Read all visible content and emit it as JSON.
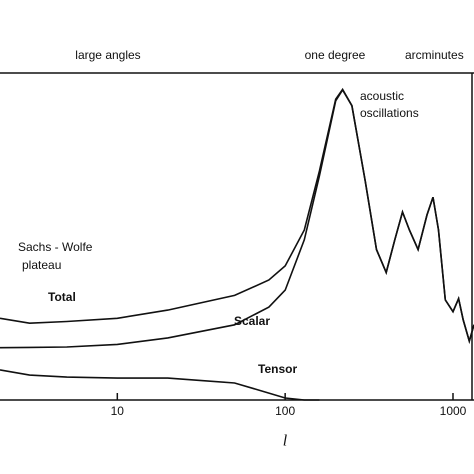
{
  "chart_data": {
    "type": "line",
    "x_label": "l",
    "top_labels": [
      "large angles",
      "one degree",
      "arcminutes"
    ],
    "annotations": {
      "acoustic": [
        "acoustic",
        "oscillations"
      ],
      "sachs_wolfe": [
        "Sachs - Wolfe",
        "plateau"
      ]
    },
    "log_x": true,
    "xlim": [
      2,
      1334
    ],
    "xticks": [
      10,
      100,
      1000
    ],
    "ylim": [
      0,
      100
    ],
    "x": [
      2,
      3,
      5,
      10,
      20,
      50,
      80,
      100,
      130,
      160,
      200,
      220,
      250,
      300,
      350,
      400,
      450,
      500,
      550,
      620,
      700,
      760,
      820,
      900,
      1000,
      1080,
      1150,
      1250,
      1334
    ],
    "series": [
      {
        "name": "Total",
        "color": "#111111",
        "values": [
          25,
          23.5,
          24,
          25,
          27.5,
          32,
          36.7,
          41,
          52,
          70,
          92,
          95,
          90,
          67,
          46,
          39,
          49,
          57.5,
          52,
          46,
          56.6,
          62,
          52,
          30.6,
          27,
          31,
          24.5,
          18,
          23
        ]
      },
      {
        "name": "Scalar",
        "color": "#111111",
        "values": [
          16,
          16.1,
          16.2,
          17,
          19,
          23,
          28.4,
          33.6,
          49,
          68.5,
          91.5,
          94.8,
          90,
          67,
          46,
          39,
          49,
          57.5,
          52,
          46,
          56.6,
          62,
          52,
          30.6,
          27,
          31,
          24.5,
          18,
          23
        ]
      },
      {
        "name": "Tensor",
        "color": "#111111",
        "values": [
          9.2,
          7.6,
          7,
          6.7,
          6.7,
          5.2,
          2.1,
          0.6,
          0,
          0,
          null,
          null,
          null,
          null,
          null,
          null,
          null,
          null,
          null,
          null,
          null,
          null,
          null,
          null,
          null,
          null,
          null,
          null,
          null
        ]
      }
    ]
  }
}
